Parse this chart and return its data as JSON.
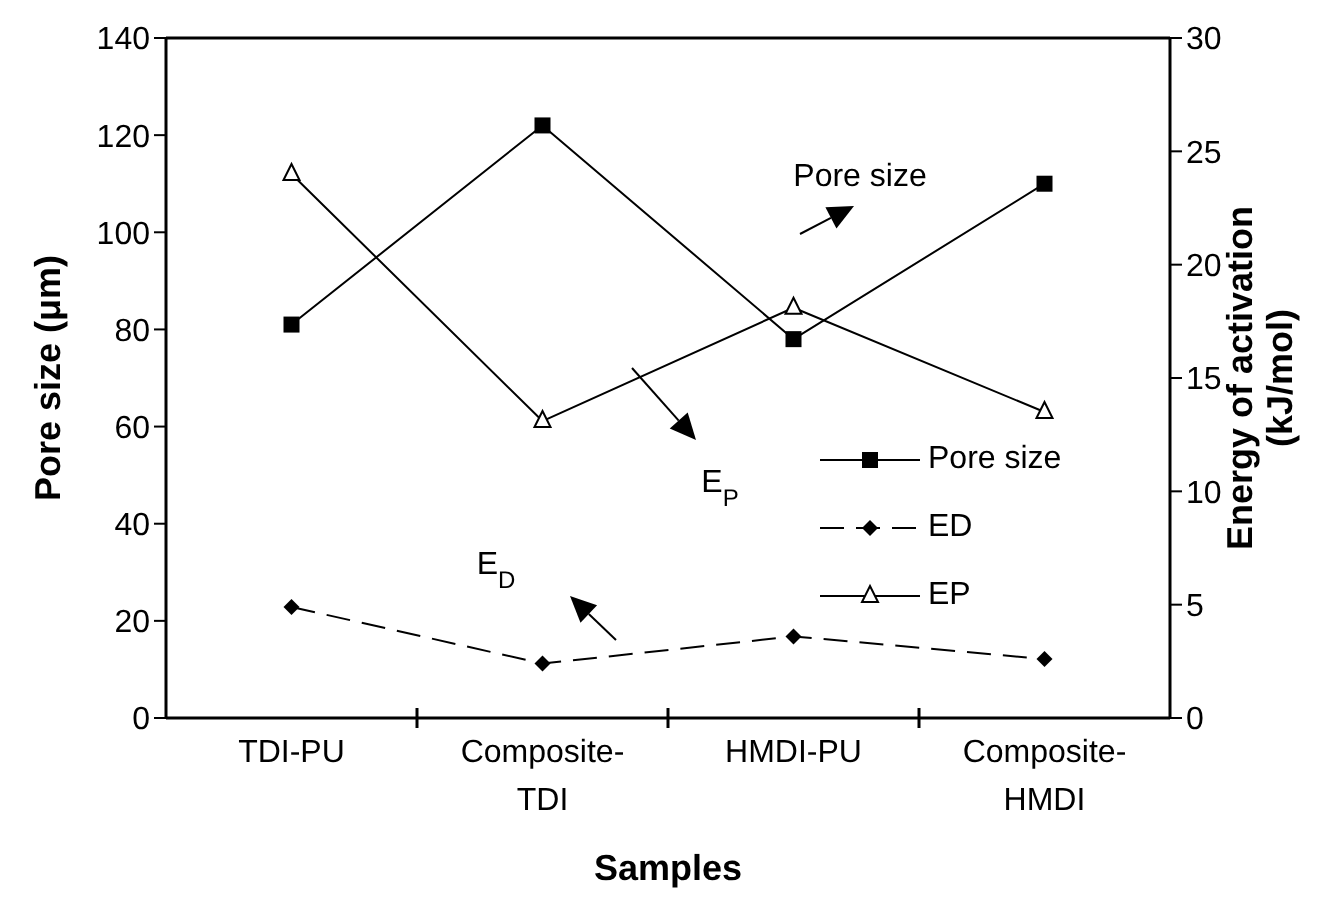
{
  "chart_data": {
    "type": "line",
    "xlabel": "Samples",
    "ylabel": "Pore size (μm)",
    "y2label": "Energy of activation (kJ/mol)",
    "categories": [
      "TDI-PU",
      "Composite-TDI",
      "HMDI-PU",
      "Composite-HMDI"
    ],
    "series": [
      {
        "name": "Pore size",
        "color": "#000000",
        "values": [
          81,
          122,
          78,
          110
        ],
        "marker": "square",
        "line_style": "solid"
      },
      {
        "name": "ED",
        "color": "#000000",
        "values": [
          4.9,
          2.4,
          3.6,
          2.6
        ],
        "axis": "y2",
        "marker": "diamond",
        "line_style": "dashed"
      },
      {
        "name": "EP",
        "color": "#000000",
        "values": [
          24,
          13.1,
          18.1,
          13.5
        ],
        "axis": "y2",
        "marker": "triangle",
        "line_style": "solid"
      }
    ],
    "ylim": [
      0,
      140
    ],
    "yticks": [
      0,
      20,
      40,
      60,
      80,
      100,
      120,
      140
    ],
    "y2lim": [
      0,
      30
    ],
    "y2ticks": [
      0,
      5,
      10,
      15,
      20,
      25,
      30
    ],
    "grid": false,
    "legend": "right",
    "annotations": [
      "Pore size",
      "E$_{P}$",
      "E$_{D}$"
    ]
  }
}
